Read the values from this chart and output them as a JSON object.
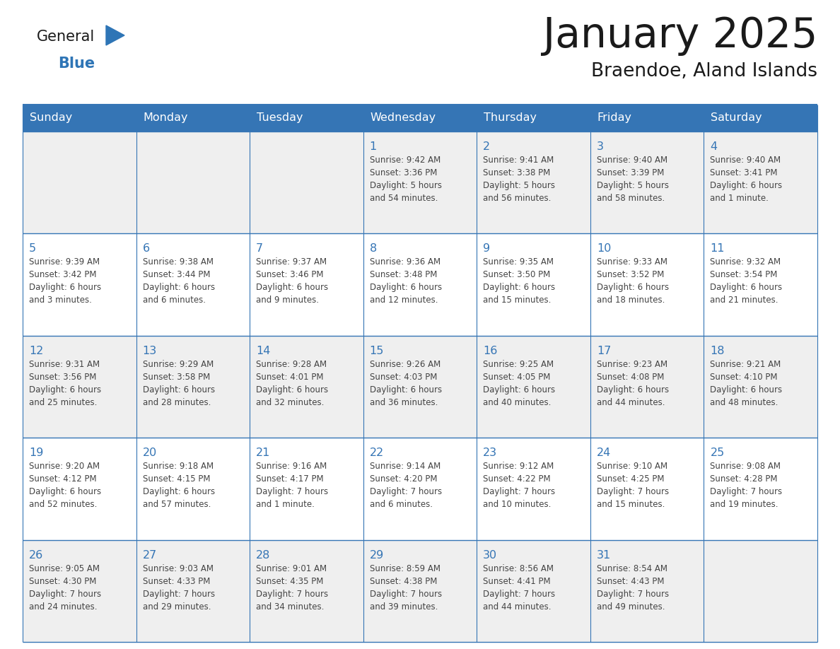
{
  "title": "January 2025",
  "subtitle": "Braendoe, Aland Islands",
  "days_of_week": [
    "Sunday",
    "Monday",
    "Tuesday",
    "Wednesday",
    "Thursday",
    "Friday",
    "Saturday"
  ],
  "header_bg": "#3575B5",
  "header_text_color": "#FFFFFF",
  "cell_bg_light": "#EFEFEF",
  "cell_bg_white": "#FFFFFF",
  "border_color": "#3575B5",
  "day_num_color": "#3575B5",
  "text_color": "#444444",
  "title_color": "#1a1a1a",
  "logo_black": "#1a1a1a",
  "logo_blue": "#2E75B6",
  "triangle_color": "#2E75B6",
  "calendar": [
    [
      {
        "day": null,
        "info": ""
      },
      {
        "day": null,
        "info": ""
      },
      {
        "day": null,
        "info": ""
      },
      {
        "day": 1,
        "info": "Sunrise: 9:42 AM\nSunset: 3:36 PM\nDaylight: 5 hours\nand 54 minutes."
      },
      {
        "day": 2,
        "info": "Sunrise: 9:41 AM\nSunset: 3:38 PM\nDaylight: 5 hours\nand 56 minutes."
      },
      {
        "day": 3,
        "info": "Sunrise: 9:40 AM\nSunset: 3:39 PM\nDaylight: 5 hours\nand 58 minutes."
      },
      {
        "day": 4,
        "info": "Sunrise: 9:40 AM\nSunset: 3:41 PM\nDaylight: 6 hours\nand 1 minute."
      }
    ],
    [
      {
        "day": 5,
        "info": "Sunrise: 9:39 AM\nSunset: 3:42 PM\nDaylight: 6 hours\nand 3 minutes."
      },
      {
        "day": 6,
        "info": "Sunrise: 9:38 AM\nSunset: 3:44 PM\nDaylight: 6 hours\nand 6 minutes."
      },
      {
        "day": 7,
        "info": "Sunrise: 9:37 AM\nSunset: 3:46 PM\nDaylight: 6 hours\nand 9 minutes."
      },
      {
        "day": 8,
        "info": "Sunrise: 9:36 AM\nSunset: 3:48 PM\nDaylight: 6 hours\nand 12 minutes."
      },
      {
        "day": 9,
        "info": "Sunrise: 9:35 AM\nSunset: 3:50 PM\nDaylight: 6 hours\nand 15 minutes."
      },
      {
        "day": 10,
        "info": "Sunrise: 9:33 AM\nSunset: 3:52 PM\nDaylight: 6 hours\nand 18 minutes."
      },
      {
        "day": 11,
        "info": "Sunrise: 9:32 AM\nSunset: 3:54 PM\nDaylight: 6 hours\nand 21 minutes."
      }
    ],
    [
      {
        "day": 12,
        "info": "Sunrise: 9:31 AM\nSunset: 3:56 PM\nDaylight: 6 hours\nand 25 minutes."
      },
      {
        "day": 13,
        "info": "Sunrise: 9:29 AM\nSunset: 3:58 PM\nDaylight: 6 hours\nand 28 minutes."
      },
      {
        "day": 14,
        "info": "Sunrise: 9:28 AM\nSunset: 4:01 PM\nDaylight: 6 hours\nand 32 minutes."
      },
      {
        "day": 15,
        "info": "Sunrise: 9:26 AM\nSunset: 4:03 PM\nDaylight: 6 hours\nand 36 minutes."
      },
      {
        "day": 16,
        "info": "Sunrise: 9:25 AM\nSunset: 4:05 PM\nDaylight: 6 hours\nand 40 minutes."
      },
      {
        "day": 17,
        "info": "Sunrise: 9:23 AM\nSunset: 4:08 PM\nDaylight: 6 hours\nand 44 minutes."
      },
      {
        "day": 18,
        "info": "Sunrise: 9:21 AM\nSunset: 4:10 PM\nDaylight: 6 hours\nand 48 minutes."
      }
    ],
    [
      {
        "day": 19,
        "info": "Sunrise: 9:20 AM\nSunset: 4:12 PM\nDaylight: 6 hours\nand 52 minutes."
      },
      {
        "day": 20,
        "info": "Sunrise: 9:18 AM\nSunset: 4:15 PM\nDaylight: 6 hours\nand 57 minutes."
      },
      {
        "day": 21,
        "info": "Sunrise: 9:16 AM\nSunset: 4:17 PM\nDaylight: 7 hours\nand 1 minute."
      },
      {
        "day": 22,
        "info": "Sunrise: 9:14 AM\nSunset: 4:20 PM\nDaylight: 7 hours\nand 6 minutes."
      },
      {
        "day": 23,
        "info": "Sunrise: 9:12 AM\nSunset: 4:22 PM\nDaylight: 7 hours\nand 10 minutes."
      },
      {
        "day": 24,
        "info": "Sunrise: 9:10 AM\nSunset: 4:25 PM\nDaylight: 7 hours\nand 15 minutes."
      },
      {
        "day": 25,
        "info": "Sunrise: 9:08 AM\nSunset: 4:28 PM\nDaylight: 7 hours\nand 19 minutes."
      }
    ],
    [
      {
        "day": 26,
        "info": "Sunrise: 9:05 AM\nSunset: 4:30 PM\nDaylight: 7 hours\nand 24 minutes."
      },
      {
        "day": 27,
        "info": "Sunrise: 9:03 AM\nSunset: 4:33 PM\nDaylight: 7 hours\nand 29 minutes."
      },
      {
        "day": 28,
        "info": "Sunrise: 9:01 AM\nSunset: 4:35 PM\nDaylight: 7 hours\nand 34 minutes."
      },
      {
        "day": 29,
        "info": "Sunrise: 8:59 AM\nSunset: 4:38 PM\nDaylight: 7 hours\nand 39 minutes."
      },
      {
        "day": 30,
        "info": "Sunrise: 8:56 AM\nSunset: 4:41 PM\nDaylight: 7 hours\nand 44 minutes."
      },
      {
        "day": 31,
        "info": "Sunrise: 8:54 AM\nSunset: 4:43 PM\nDaylight: 7 hours\nand 49 minutes."
      },
      {
        "day": null,
        "info": ""
      }
    ]
  ]
}
